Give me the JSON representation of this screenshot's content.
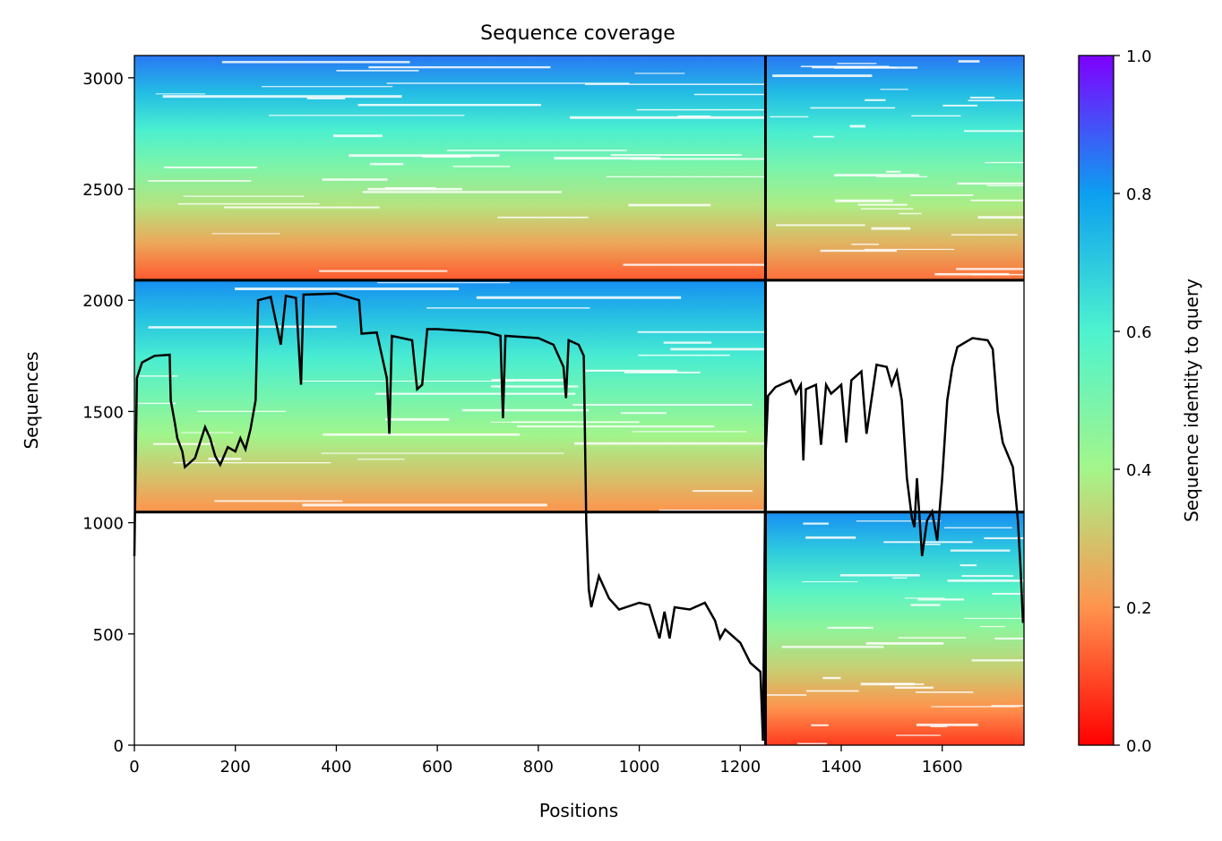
{
  "chart_data": {
    "type": "heatmap",
    "title": "Sequence coverage",
    "xlabel": "Positions",
    "ylabel": "Sequences",
    "xlim": [
      0,
      1762
    ],
    "ylim": [
      0,
      3100
    ],
    "xticks": [
      0,
      200,
      400,
      600,
      800,
      1000,
      1200,
      1400,
      1600
    ],
    "yticks": [
      0,
      500,
      1000,
      1500,
      2000,
      2500,
      3000
    ],
    "colorbar": {
      "label": "Sequence identity to query",
      "colormap": "rainbow",
      "range": [
        0,
        1
      ],
      "ticks": [
        "0.0",
        "0.2",
        "0.4",
        "0.6",
        "0.8",
        "1.0"
      ]
    },
    "chain_boundaries": {
      "x": [
        1250
      ],
      "y": [
        1048,
        2090
      ]
    },
    "blocks": [
      {
        "x": [
          0,
          1250
        ],
        "y": [
          2090,
          3100
        ],
        "identity_top": 0.85,
        "identity_bottom": 0.12
      },
      {
        "x": [
          0,
          1250
        ],
        "y": [
          1048,
          2090
        ],
        "identity_top": 0.82,
        "identity_bottom": 0.2
      },
      {
        "x": [
          1250,
          1762
        ],
        "y": [
          2090,
          3100
        ],
        "identity_top": 0.85,
        "identity_bottom": 0.15
      },
      {
        "x": [
          1250,
          1762
        ],
        "y": [
          0,
          1048
        ],
        "identity_top": 0.82,
        "identity_bottom": 0.08
      }
    ],
    "coverage_line": {
      "name": "coverage",
      "color": "#000000",
      "points": [
        [
          0,
          850
        ],
        [
          5,
          1650
        ],
        [
          15,
          1720
        ],
        [
          40,
          1750
        ],
        [
          70,
          1755
        ],
        [
          72,
          1550
        ],
        [
          80,
          1450
        ],
        [
          85,
          1380
        ],
        [
          95,
          1320
        ],
        [
          100,
          1250
        ],
        [
          120,
          1290
        ],
        [
          140,
          1430
        ],
        [
          150,
          1380
        ],
        [
          160,
          1300
        ],
        [
          170,
          1260
        ],
        [
          185,
          1340
        ],
        [
          200,
          1320
        ],
        [
          210,
          1380
        ],
        [
          220,
          1330
        ],
        [
          230,
          1420
        ],
        [
          240,
          1550
        ],
        [
          245,
          2000
        ],
        [
          270,
          2015
        ],
        [
          290,
          1800
        ],
        [
          300,
          2020
        ],
        [
          320,
          2010
        ],
        [
          330,
          1620
        ],
        [
          335,
          2025
        ],
        [
          400,
          2030
        ],
        [
          445,
          2000
        ],
        [
          450,
          1850
        ],
        [
          480,
          1855
        ],
        [
          500,
          1650
        ],
        [
          505,
          1400
        ],
        [
          510,
          1840
        ],
        [
          550,
          1820
        ],
        [
          560,
          1600
        ],
        [
          570,
          1620
        ],
        [
          580,
          1870
        ],
        [
          600,
          1870
        ],
        [
          700,
          1855
        ],
        [
          725,
          1840
        ],
        [
          730,
          1470
        ],
        [
          735,
          1840
        ],
        [
          800,
          1830
        ],
        [
          830,
          1800
        ],
        [
          850,
          1700
        ],
        [
          855,
          1560
        ],
        [
          860,
          1820
        ],
        [
          880,
          1800
        ],
        [
          890,
          1750
        ],
        [
          895,
          1000
        ],
        [
          900,
          700
        ],
        [
          905,
          620
        ],
        [
          920,
          760
        ],
        [
          940,
          660
        ],
        [
          960,
          610
        ],
        [
          1000,
          640
        ],
        [
          1020,
          630
        ],
        [
          1040,
          480
        ],
        [
          1050,
          600
        ],
        [
          1060,
          480
        ],
        [
          1070,
          620
        ],
        [
          1100,
          610
        ],
        [
          1130,
          640
        ],
        [
          1150,
          560
        ],
        [
          1160,
          480
        ],
        [
          1170,
          520
        ],
        [
          1200,
          460
        ],
        [
          1220,
          370
        ],
        [
          1240,
          330
        ],
        [
          1245,
          20
        ],
        [
          1250,
          1300
        ],
        [
          1255,
          1570
        ],
        [
          1270,
          1610
        ],
        [
          1300,
          1640
        ],
        [
          1310,
          1580
        ],
        [
          1320,
          1620
        ],
        [
          1325,
          1280
        ],
        [
          1330,
          1600
        ],
        [
          1350,
          1620
        ],
        [
          1360,
          1350
        ],
        [
          1370,
          1620
        ],
        [
          1380,
          1580
        ],
        [
          1390,
          1600
        ],
        [
          1400,
          1620
        ],
        [
          1410,
          1360
        ],
        [
          1420,
          1640
        ],
        [
          1440,
          1680
        ],
        [
          1450,
          1400
        ],
        [
          1470,
          1710
        ],
        [
          1490,
          1700
        ],
        [
          1500,
          1620
        ],
        [
          1510,
          1680
        ],
        [
          1520,
          1550
        ],
        [
          1530,
          1200
        ],
        [
          1540,
          1020
        ],
        [
          1545,
          980
        ],
        [
          1550,
          1200
        ],
        [
          1560,
          850
        ],
        [
          1570,
          1010
        ],
        [
          1580,
          1050
        ],
        [
          1590,
          920
        ],
        [
          1600,
          1200
        ],
        [
          1610,
          1550
        ],
        [
          1620,
          1700
        ],
        [
          1630,
          1790
        ],
        [
          1660,
          1830
        ],
        [
          1690,
          1820
        ],
        [
          1700,
          1780
        ],
        [
          1710,
          1500
        ],
        [
          1720,
          1360
        ],
        [
          1740,
          1250
        ],
        [
          1750,
          1010
        ],
        [
          1755,
          800
        ],
        [
          1760,
          550
        ]
      ]
    }
  }
}
